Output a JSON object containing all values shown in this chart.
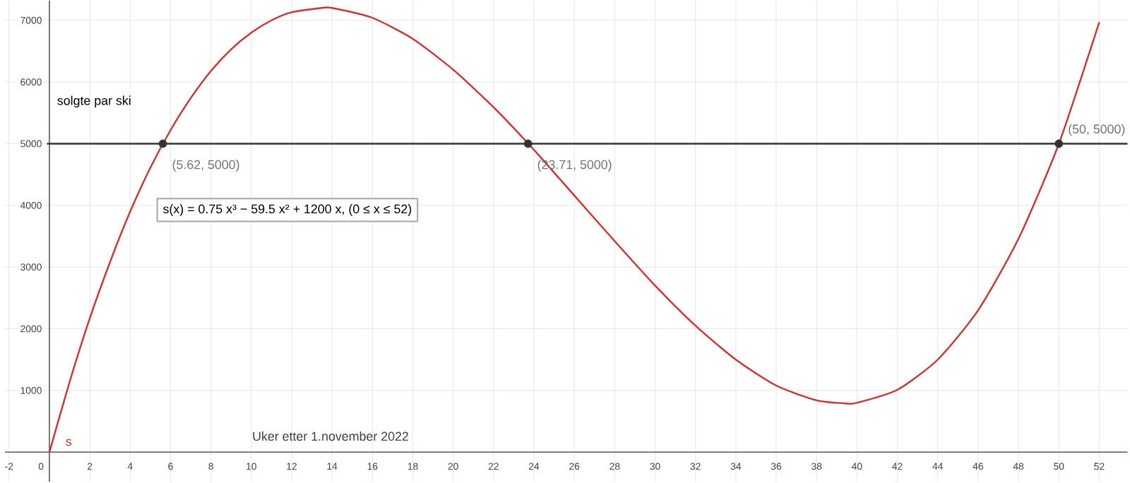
{
  "chart_data": {
    "type": "line",
    "xlabel": "Uker etter 1.november 2022",
    "ylabel": "solgte par ski",
    "xlim": [
      -2.2,
      53.4
    ],
    "ylim": [
      -480,
      7320
    ],
    "xticks": [
      {
        "value": -2,
        "label": "-2"
      },
      0,
      2,
      4,
      6,
      8,
      10,
      12,
      14,
      16,
      18,
      20,
      22,
      24,
      26,
      28,
      30,
      32,
      34,
      36,
      38,
      40,
      42,
      44,
      46,
      48,
      50,
      52
    ],
    "yticks": [
      1000,
      2000,
      3000,
      4000,
      5000,
      6000,
      7000
    ],
    "grid": true,
    "series": [
      {
        "name": "s",
        "color": "#d62f2f",
        "x": [
          0,
          1,
          2,
          3,
          4,
          5,
          6,
          7,
          8,
          9,
          10,
          11,
          12,
          13.5,
          14,
          16,
          18,
          20,
          22,
          24,
          26,
          28,
          30,
          32,
          34,
          36,
          38,
          39.4,
          40,
          42,
          44,
          46,
          48,
          50,
          52
        ],
        "values": [
          0,
          1140,
          2170,
          3080,
          3900,
          4610,
          5220,
          5740,
          6180,
          6530,
          6800,
          7000,
          7130,
          7200,
          7200,
          7040,
          6700,
          6200,
          5590,
          4900,
          4160,
          3420,
          2700,
          2050,
          1500,
          1080,
          840,
          790,
          800,
          1010,
          1500,
          2300,
          3460,
          5000,
          6970
        ]
      },
      {
        "type": "scatter",
        "color": "#333333",
        "marker": "circle",
        "x": [
          5.62,
          23.71,
          50
        ],
        "values": [
          5000,
          5000,
          5000
        ]
      }
    ],
    "ref_lines": [
      {
        "axis": "y",
        "value": 5000,
        "color": "#333333"
      }
    ],
    "annotations": [
      {
        "text": "(5.62, 5000)",
        "x": 5.62,
        "y": 5000
      },
      {
        "text": "(23.71, 5000)",
        "x": 23.71,
        "y": 5000
      },
      {
        "text": "(50, 5000)",
        "x": 50,
        "y": 5000
      },
      "s(x) = 0.75 x³ − 59.5 x² + 1200 x,    (0 ≤ x ≤ 52)"
    ]
  }
}
